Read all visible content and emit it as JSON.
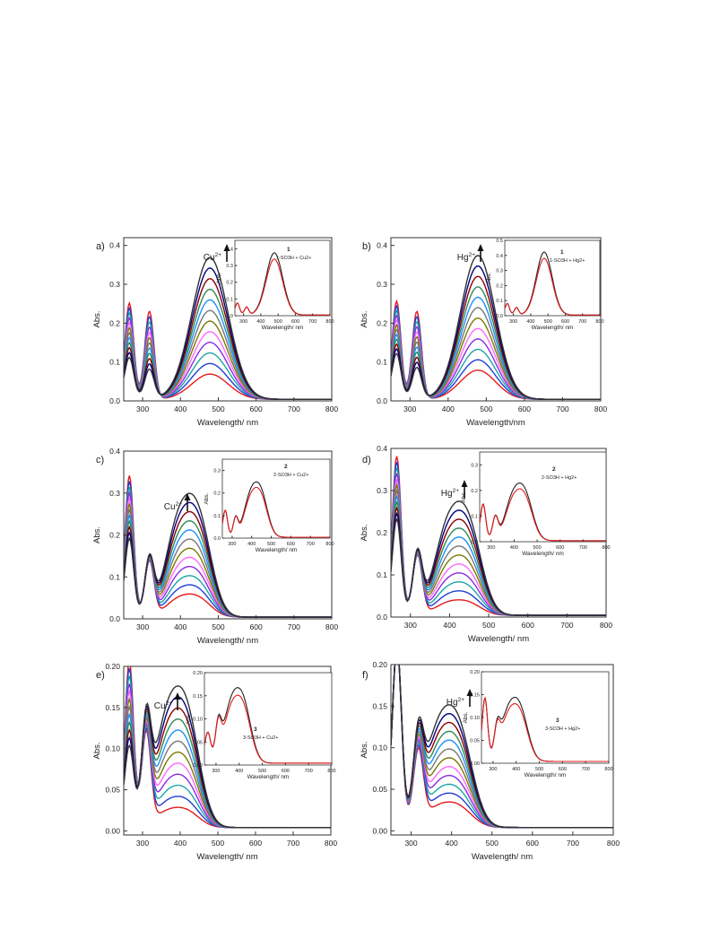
{
  "chart_data": [
    {
      "panel": "a)",
      "type": "line",
      "ion": "Cu",
      "ion_sup": "2+",
      "xlabel": "Wavelength/ nm",
      "ylabel": "Abs.",
      "xlim": [
        250,
        800
      ],
      "ylim": [
        0,
        0.42
      ],
      "xticks": [
        300,
        400,
        500,
        600,
        700,
        800
      ],
      "yticks": [
        0.0,
        0.1,
        0.2,
        0.3,
        0.4
      ],
      "ytick_labels": [
        "0.0",
        "0.1",
        "0.2",
        "0.3",
        "0.4"
      ],
      "titration": {
        "n": 12,
        "start_peak": 0.065,
        "end_peak": 0.365,
        "peak_nm": 478,
        "width": 48,
        "uv1_start": 0.23,
        "uv1_end": 0.09,
        "uv2_start": 0.225,
        "uv2_end": 0.075,
        "uv_nm": [
          265,
          318
        ]
      },
      "inset": {
        "xlabel": "Wavelength/ nm",
        "ylabel": "Abs.",
        "xlim": [
          250,
          800
        ],
        "ylim": [
          0,
          0.45
        ],
        "xticks": [
          300,
          400,
          500,
          600,
          700,
          800
        ],
        "yticks": [
          0.0,
          0.1,
          0.2,
          0.3,
          0.4
        ],
        "ytick_labels": [
          "0.0",
          "0.1",
          "0.2",
          "0.3",
          "0.4"
        ],
        "labels": [
          "1",
          "1-SO3H + Cu2+"
        ]
      }
    },
    {
      "panel": "b)",
      "type": "line",
      "ion": "Hg",
      "ion_sup": "2+",
      "xlabel": "Wavelength/nm",
      "ylabel": "Abs.",
      "xlim": [
        250,
        800
      ],
      "ylim": [
        0,
        0.42
      ],
      "xticks": [
        300,
        400,
        500,
        600,
        700,
        800
      ],
      "yticks": [
        0.0,
        0.1,
        0.2,
        0.3,
        0.4
      ],
      "ytick_labels": [
        "0.0",
        "0.1",
        "0.2",
        "0.3",
        "0.4"
      ],
      "titration": {
        "n": 12,
        "start_peak": 0.075,
        "end_peak": 0.37,
        "peak_nm": 478,
        "width": 46,
        "uv1_start": 0.235,
        "uv1_end": 0.1,
        "uv2_start": 0.225,
        "uv2_end": 0.08,
        "uv_nm": [
          265,
          318
        ]
      },
      "inset": {
        "xlabel": "Wavelength/ nm",
        "ylabel": "Abs.",
        "xlim": [
          250,
          800
        ],
        "ylim": [
          0,
          0.5
        ],
        "xticks": [
          300,
          400,
          500,
          600,
          700,
          800
        ],
        "yticks": [
          0.0,
          0.1,
          0.2,
          0.3,
          0.4,
          0.5
        ],
        "ytick_labels": [
          "0.0",
          "0.1",
          "0.2",
          "0.3",
          "0.4",
          "0.5"
        ],
        "labels": [
          "1",
          "1-SO3H + Hg2+"
        ]
      }
    },
    {
      "panel": "c)",
      "type": "line",
      "ion": "Cu",
      "ion_sup": "2+",
      "xlabel": "Wavelength/ nm",
      "ylabel": "Abs.",
      "xlim": [
        250,
        800
      ],
      "ylim": [
        0,
        0.4
      ],
      "xticks": [
        300,
        400,
        500,
        600,
        700,
        800
      ],
      "yticks": [
        0.0,
        0.1,
        0.2,
        0.3,
        0.4
      ],
      "ytick_labels": [
        "0.0",
        "0.1",
        "0.2",
        "0.3",
        "0.4"
      ],
      "titration": {
        "n": 12,
        "start_peak": 0.045,
        "end_peak": 0.24,
        "peak_nm": 430,
        "width": 55,
        "uv1_start": 0.32,
        "uv1_end": 0.17,
        "uv2_start": 0.13,
        "uv2_end": 0.13,
        "uv_nm": [
          265,
          318
        ],
        "double": true
      },
      "inset": {
        "xlabel": "Wavelength/ nm",
        "ylabel": "Abs.",
        "xlim": [
          250,
          800
        ],
        "ylim": [
          0,
          0.35
        ],
        "xticks": [
          300,
          400,
          500,
          600,
          700,
          800
        ],
        "yticks": [
          0.0,
          0.1,
          0.2,
          0.3
        ],
        "ytick_labels": [
          "0.0",
          "0.1",
          "0.2",
          "0.3"
        ],
        "labels": [
          "2",
          "2-SO3H + Cu2+"
        ]
      }
    },
    {
      "panel": "d)",
      "type": "line",
      "ion": "Hg",
      "ion_sup": "2+",
      "xlabel": "Wavelength/ nm",
      "ylabel": "Abs.",
      "xlim": [
        250,
        800
      ],
      "ylim": [
        0,
        0.4
      ],
      "xticks": [
        300,
        400,
        500,
        600,
        700,
        800
      ],
      "yticks": [
        0.0,
        0.1,
        0.2,
        0.3,
        0.4
      ],
      "ytick_labels": [
        "0.0",
        "0.1",
        "0.2",
        "0.3",
        "0.4"
      ],
      "titration": {
        "n": 12,
        "start_peak": 0.03,
        "end_peak": 0.22,
        "peak_nm": 430,
        "width": 55,
        "uv1_start": 0.36,
        "uv1_end": 0.21,
        "uv2_start": 0.14,
        "uv2_end": 0.14,
        "uv_nm": [
          265,
          318
        ],
        "double": true
      },
      "inset": {
        "xlabel": "Wavelength/ nm",
        "ylabel": "Abs.",
        "xlim": [
          250,
          800
        ],
        "ylim": [
          0,
          0.35
        ],
        "xticks": [
          300,
          400,
          500,
          600,
          700,
          800
        ],
        "yticks": [
          0.0,
          0.1,
          0.2,
          0.3
        ],
        "ytick_labels": [
          "0.0",
          "0.1",
          "0.2",
          "0.3"
        ],
        "labels": [
          "2",
          "2-SO3H + Hg2+"
        ]
      }
    },
    {
      "panel": "e)",
      "type": "line",
      "ion": "Cu",
      "ion_sup": "2+",
      "xlabel": "Wavelength/ nm",
      "ylabel": "Abs.",
      "xlim": [
        250,
        800
      ],
      "ylim": [
        -0.005,
        0.2
      ],
      "xticks": [
        300,
        400,
        500,
        600,
        700,
        800
      ],
      "yticks": [
        0.0,
        0.05,
        0.1,
        0.15,
        0.2
      ],
      "ytick_labels": [
        "0.00",
        "0.05",
        "0.10",
        "0.15",
        "0.20"
      ],
      "titration": {
        "n": 12,
        "start_peak": 0.02,
        "end_peak": 0.14,
        "peak_nm": 400,
        "width": 55,
        "uv1_start": 0.185,
        "uv1_end": 0.08,
        "uv2_start": 0.11,
        "uv2_end": 0.11,
        "uv_nm": [
          265,
          310
        ],
        "double": true
      },
      "inset": {
        "xlabel": "Wavelength/ nm",
        "ylabel": "Abs.",
        "xlim": [
          250,
          800
        ],
        "ylim": [
          0,
          0.2
        ],
        "xticks": [
          300,
          400,
          500,
          600,
          700,
          800
        ],
        "yticks": [
          0.0,
          0.05,
          0.1,
          0.15,
          0.2
        ],
        "ytick_labels": [
          "0.00",
          "0.05",
          "0.10",
          "0.15",
          "0.20"
        ],
        "labels": [
          "3",
          "3-SO3H + Cu2+"
        ]
      }
    },
    {
      "panel": "f)",
      "type": "line",
      "ion": "Hg",
      "ion_sup": "2+",
      "xlabel": "Wavelength/ nm",
      "ylabel": "Abs.",
      "xlim": [
        250,
        800
      ],
      "ylim": [
        -0.005,
        0.2
      ],
      "xticks": [
        300,
        400,
        500,
        600,
        700,
        800
      ],
      "yticks": [
        0.0,
        0.05,
        0.1,
        0.15,
        0.2
      ],
      "ytick_labels": [
        "0.00",
        "0.05",
        "0.10",
        "0.15",
        "0.20"
      ],
      "titration": {
        "n": 12,
        "start_peak": 0.025,
        "end_peak": 0.12,
        "peak_nm": 400,
        "width": 55,
        "uv1_start": 0.2,
        "uv1_end": 0.2,
        "uv2_start": 0.085,
        "uv2_end": 0.085,
        "uv_nm": [
          265,
          318
        ],
        "double": true
      },
      "inset": {
        "xlabel": "Wavelength/ nm",
        "ylabel": "Abs.",
        "xlim": [
          250,
          800
        ],
        "ylim": [
          0,
          0.2
        ],
        "xticks": [
          300,
          400,
          500,
          600,
          700,
          800
        ],
        "yticks": [
          0.0,
          0.05,
          0.1,
          0.15,
          0.2
        ],
        "ytick_labels": [
          "0.00",
          "0.05",
          "0.10",
          "0.15",
          "0.20"
        ],
        "labels": [
          "3",
          "3-SO3H + Hg2+"
        ]
      }
    }
  ],
  "series_colors": [
    "#e41a1c",
    "#1f3fd6",
    "#1aa7a7",
    "#8a2be2",
    "#ff66ff",
    "#7a7a00",
    "#777777",
    "#1e90ff",
    "#2e8b57",
    "#8b0000",
    "#000080",
    "#333333"
  ]
}
